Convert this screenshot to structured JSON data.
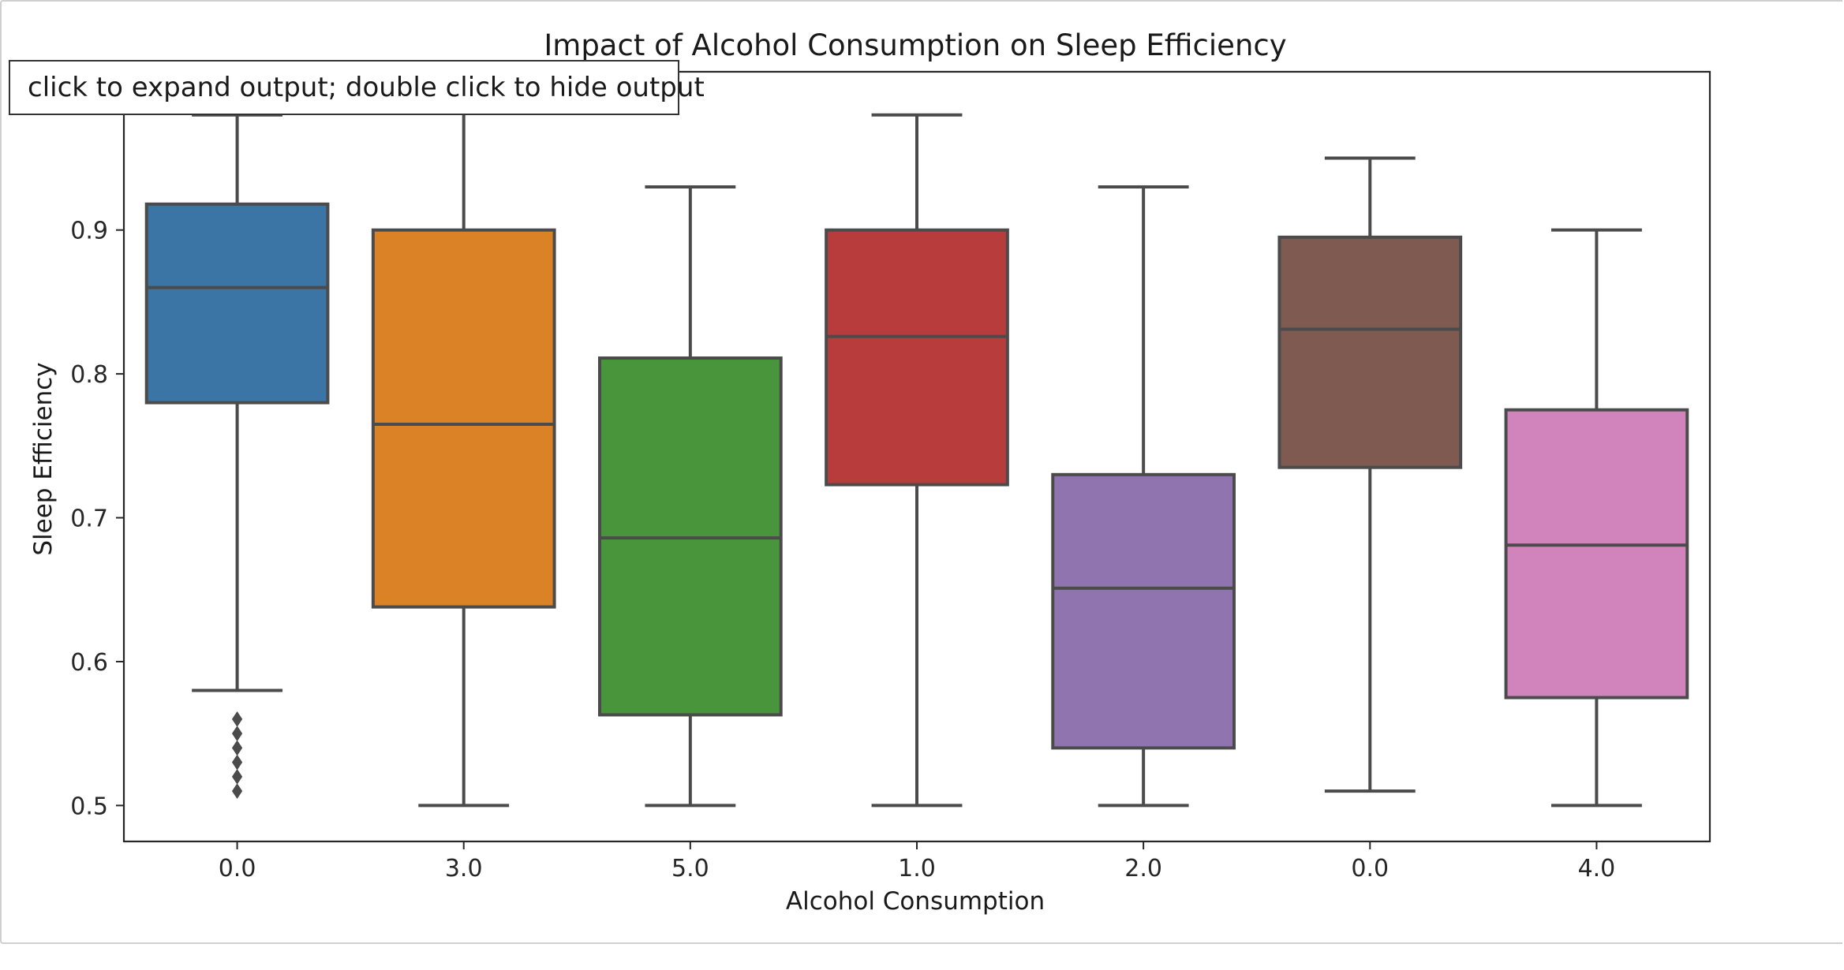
{
  "output": {
    "tooltip": "click to expand output; double click to hide output"
  },
  "chart_data": {
    "type": "box",
    "title": "Impact of Alcohol Consumption on Sleep Efficiency",
    "xlabel": "Alcohol Consumption",
    "ylabel": "Sleep Efficiency",
    "ylim": [
      0.475,
      1.01
    ],
    "yticks": [
      0.5,
      0.6,
      0.7,
      0.8,
      0.9
    ],
    "ytick_labels": [
      "0.5",
      "0.6",
      "0.7",
      "0.8",
      "0.9"
    ],
    "grid": false,
    "categories": [
      "0.0",
      "3.0",
      "5.0",
      "1.0",
      "2.0",
      "0.0",
      "4.0"
    ],
    "boxes": [
      {
        "category": "0.0",
        "whisker_low": 0.58,
        "q1": 0.78,
        "median": 0.86,
        "q3": 0.918,
        "whisker_high": 0.98,
        "outliers": [
          0.51,
          0.52,
          0.53,
          0.54,
          0.55,
          0.56
        ],
        "color": "#3a75a5"
      },
      {
        "category": "3.0",
        "whisker_low": 0.5,
        "q1": 0.638,
        "median": 0.765,
        "q3": 0.9,
        "whisker_high": 0.99,
        "outliers": [],
        "color": "#db8226"
      },
      {
        "category": "5.0",
        "whisker_low": 0.5,
        "q1": 0.563,
        "median": 0.686,
        "q3": 0.811,
        "whisker_high": 0.93,
        "outliers": [],
        "color": "#48953b"
      },
      {
        "category": "1.0",
        "whisker_low": 0.5,
        "q1": 0.723,
        "median": 0.826,
        "q3": 0.9,
        "whisker_high": 0.98,
        "outliers": [],
        "color": "#b83c3c"
      },
      {
        "category": "2.0",
        "whisker_low": 0.5,
        "q1": 0.54,
        "median": 0.651,
        "q3": 0.73,
        "whisker_high": 0.93,
        "outliers": [],
        "color": "#8f74b0"
      },
      {
        "category": "0.0",
        "whisker_low": 0.51,
        "q1": 0.735,
        "median": 0.831,
        "q3": 0.895,
        "whisker_high": 0.95,
        "outliers": [],
        "color": "#7f5a50"
      },
      {
        "category": "4.0",
        "whisker_low": 0.5,
        "q1": 0.575,
        "median": 0.681,
        "q3": 0.775,
        "whisker_high": 0.9,
        "outliers": [],
        "color": "#d184bc"
      }
    ],
    "line_color": "#4b4b4b"
  }
}
